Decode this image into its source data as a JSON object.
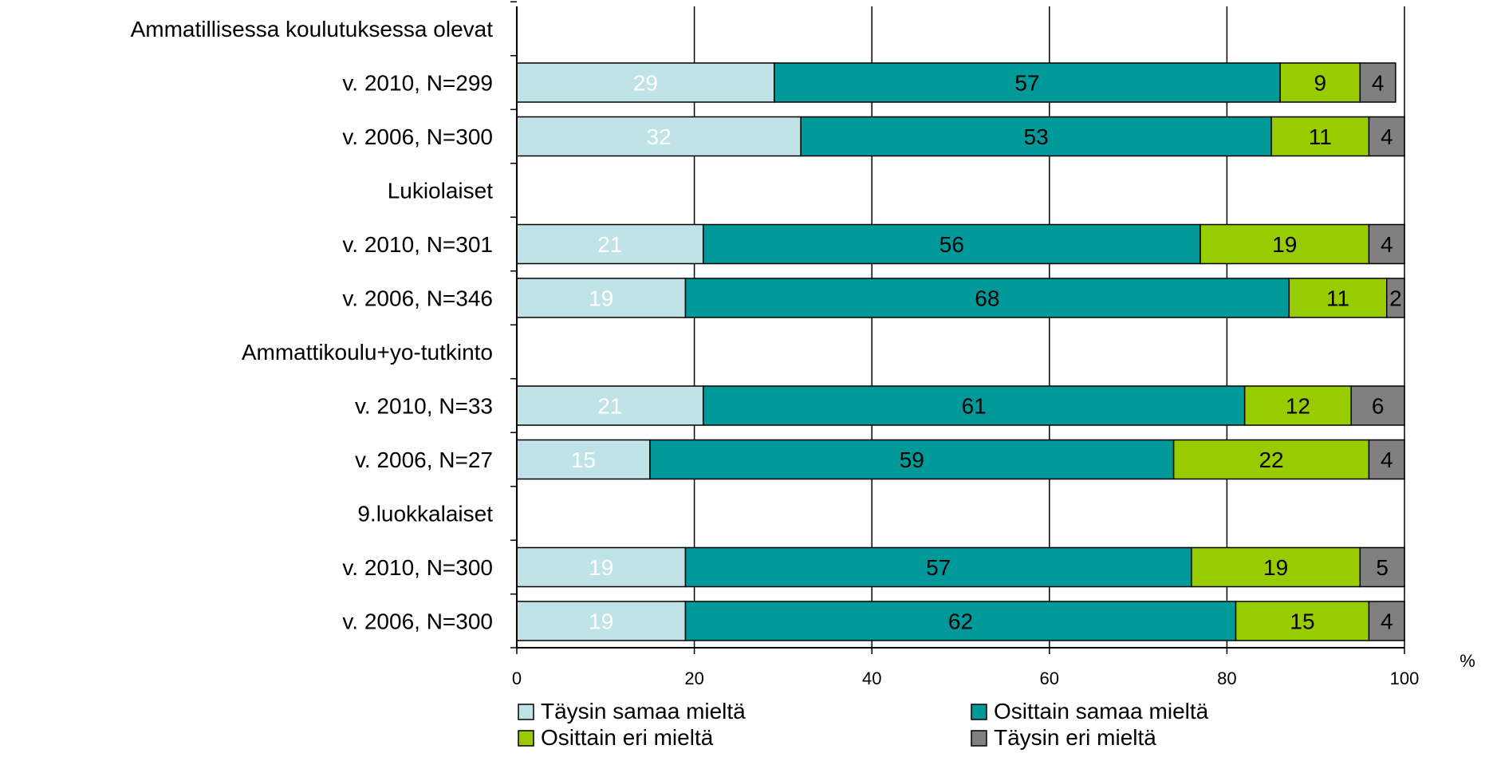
{
  "chart_data": {
    "type": "bar",
    "orientation": "horizontal",
    "stacked": true,
    "title": "",
    "xlabel": "",
    "ylabel": "",
    "x_unit": "%",
    "xlim": [
      0,
      100
    ],
    "x_ticks": [
      0,
      20,
      40,
      60,
      80,
      100
    ],
    "grid": "vertical",
    "legend_position": "bottom",
    "categories": [
      "Ammatillisessa koulutuksessa olevat",
      "v. 2010, N=299",
      "v. 2006, N=300",
      "Lukiolaiset",
      "v. 2010, N=301",
      "v. 2006, N=346",
      "Ammattikoulu+yo-tutkinto",
      "v. 2010, N=33",
      "v. 2006, N=27",
      "9.luokkalaiset",
      "v. 2010, N=300",
      "v. 2006, N=300"
    ],
    "series": [
      {
        "name": "Täysin samaa mieltä",
        "color": "#bfe3e6",
        "label_color": "#ffffff",
        "values": [
          null,
          29,
          32,
          null,
          21,
          19,
          null,
          21,
          15,
          null,
          19,
          19
        ]
      },
      {
        "name": "Osittain samaa mieltä",
        "color": "#00999a",
        "label_color": "#000000",
        "values": [
          null,
          57,
          53,
          null,
          56,
          68,
          null,
          61,
          59,
          null,
          57,
          62
        ]
      },
      {
        "name": "Osittain eri mieltä",
        "color": "#99cc00",
        "label_color": "#000000",
        "values": [
          null,
          9,
          11,
          null,
          19,
          11,
          null,
          12,
          22,
          null,
          19,
          15
        ]
      },
      {
        "name": "Täysin eri mieltä",
        "color": "#808080",
        "label_color": "#000000",
        "values": [
          null,
          4,
          4,
          null,
          4,
          2,
          null,
          6,
          4,
          null,
          5,
          4
        ]
      }
    ]
  }
}
